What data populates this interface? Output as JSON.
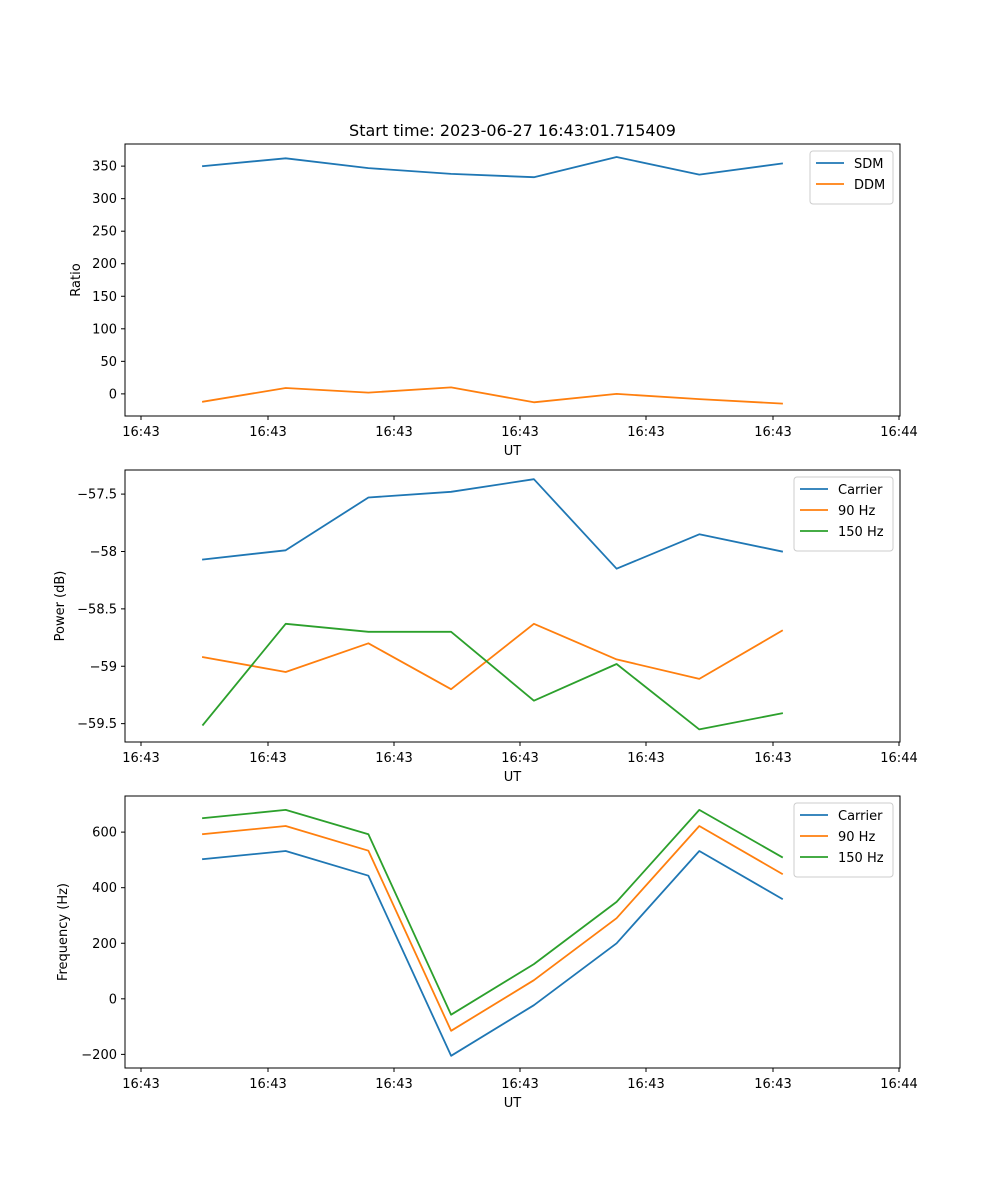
{
  "colors": {
    "blue": "#1f77b4",
    "orange": "#ff7f0e",
    "green": "#2ca02c"
  },
  "chart_data": [
    {
      "type": "line",
      "title": "Start time: 2023-06-27 16:43:01.715409",
      "xlabel": "UT",
      "ylabel": "Ratio",
      "x_tick_labels": [
        "16:43",
        "16:43",
        "16:43",
        "16:43",
        "16:43",
        "16:43",
        "16:44"
      ],
      "y_ticks": [
        0,
        50,
        100,
        150,
        200,
        250,
        300,
        350
      ],
      "ylim": [
        -34,
        384
      ],
      "legend_position": "upper right",
      "x": [
        1,
        2,
        3,
        4,
        5,
        6,
        7,
        8
      ],
      "series": [
        {
          "name": "SDM",
          "color": "#1f77b4",
          "values": [
            350,
            362,
            347,
            338,
            333,
            364,
            337,
            354
          ]
        },
        {
          "name": "DDM",
          "color": "#ff7f0e",
          "values": [
            -12,
            9,
            2,
            10,
            -13,
            0,
            -8,
            -15
          ]
        }
      ]
    },
    {
      "type": "line",
      "title": "",
      "xlabel": "UT",
      "ylabel": "Power (dB)",
      "x_tick_labels": [
        "16:43",
        "16:43",
        "16:43",
        "16:43",
        "16:43",
        "16:43",
        "16:44"
      ],
      "y_ticks": [
        -57.5,
        -58.0,
        -58.5,
        -59.0,
        -59.5
      ],
      "ylim": [
        -59.66,
        -57.29
      ],
      "legend_position": "upper right",
      "x": [
        1,
        2,
        3,
        4,
        5,
        6,
        7,
        8
      ],
      "series": [
        {
          "name": "Carrier",
          "color": "#1f77b4",
          "values": [
            -58.07,
            -57.99,
            -57.53,
            -57.48,
            -57.37,
            -58.15,
            -57.85,
            -58.0
          ]
        },
        {
          "name": "90 Hz",
          "color": "#ff7f0e",
          "values": [
            -58.92,
            -59.05,
            -58.8,
            -59.2,
            -58.63,
            -58.94,
            -59.11,
            -58.69
          ]
        },
        {
          "name": "150 Hz",
          "color": "#2ca02c",
          "values": [
            -59.51,
            -58.63,
            -58.7,
            -58.7,
            -59.3,
            -58.98,
            -59.55,
            -59.41
          ]
        }
      ]
    },
    {
      "type": "line",
      "title": "",
      "xlabel": "UT",
      "ylabel": "Frequency (Hz)",
      "x_tick_labels": [
        "16:43",
        "16:43",
        "16:43",
        "16:43",
        "16:43",
        "16:43",
        "16:44"
      ],
      "y_ticks": [
        -200,
        0,
        200,
        400,
        600
      ],
      "ylim": [
        -249,
        730
      ],
      "legend_position": "upper right",
      "x": [
        1,
        2,
        3,
        4,
        5,
        6,
        7,
        8
      ],
      "series": [
        {
          "name": "Carrier",
          "color": "#1f77b4",
          "values": [
            503,
            532,
            443,
            -205,
            -23,
            200,
            532,
            360
          ]
        },
        {
          "name": "90 Hz",
          "color": "#ff7f0e",
          "values": [
            593,
            622,
            533,
            -115,
            67,
            290,
            622,
            450
          ]
        },
        {
          "name": "150 Hz",
          "color": "#2ca02c",
          "values": [
            650,
            680,
            592,
            -57,
            125,
            349,
            680,
            510
          ]
        }
      ]
    }
  ]
}
